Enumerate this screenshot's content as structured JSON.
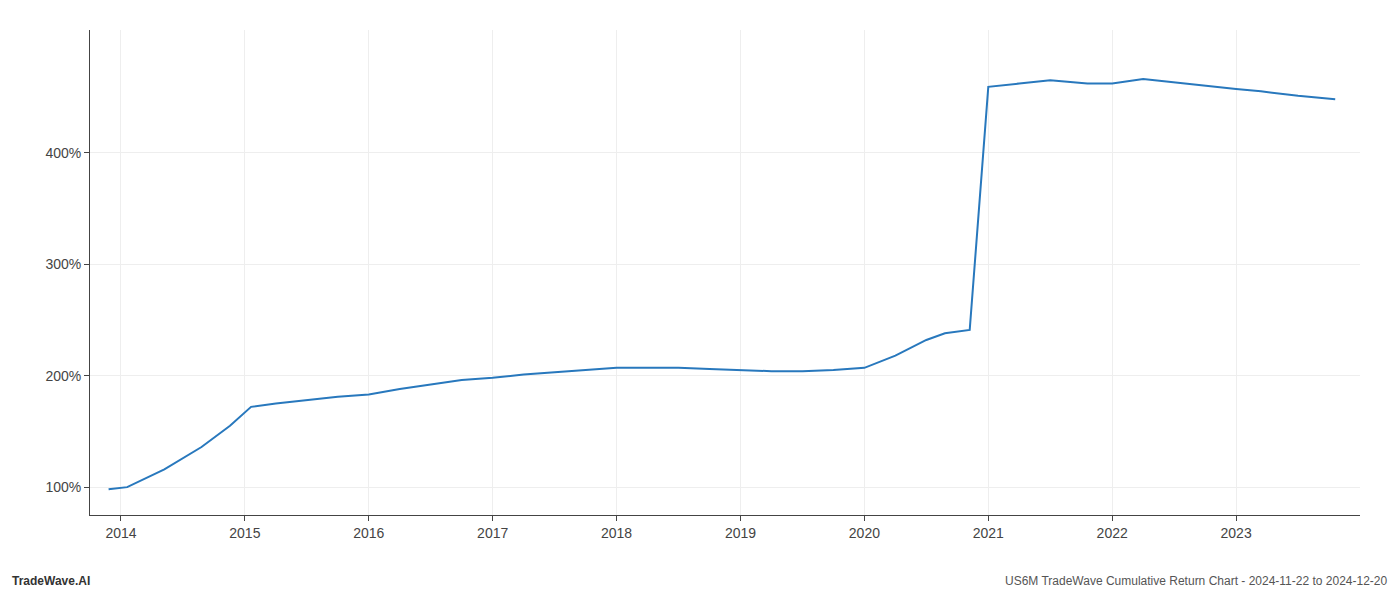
{
  "chart_data": {
    "type": "line",
    "x": [
      2013.9,
      2014.05,
      2014.35,
      2014.65,
      2014.88,
      2015.05,
      2015.25,
      2015.5,
      2015.75,
      2016.0,
      2016.25,
      2016.5,
      2016.75,
      2017.0,
      2017.25,
      2017.5,
      2017.75,
      2018.0,
      2018.25,
      2018.5,
      2018.75,
      2019.0,
      2019.25,
      2019.5,
      2019.75,
      2020.0,
      2020.25,
      2020.5,
      2020.65,
      2020.85,
      2021.0,
      2021.25,
      2021.5,
      2021.8,
      2022.0,
      2022.25,
      2022.5,
      2022.8,
      2023.0,
      2023.2,
      2023.5,
      2023.8
    ],
    "values": [
      98,
      100,
      116,
      136,
      155,
      172,
      175,
      178,
      181,
      183,
      188,
      192,
      196,
      198,
      201,
      203,
      205,
      207,
      207,
      207,
      206,
      205,
      204,
      204,
      205,
      207,
      218,
      232,
      238,
      241,
      459,
      462,
      465,
      462,
      462,
      466,
      463,
      459,
      457,
      455,
      451,
      448
    ],
    "color": "#2878bd",
    "xlim": [
      2013.75,
      2024.0
    ],
    "ylim": [
      75,
      510
    ],
    "xticks": [
      2014,
      2015,
      2016,
      2017,
      2018,
      2019,
      2020,
      2021,
      2022,
      2023
    ],
    "yticks": [
      {
        "value": 100,
        "label": "100%"
      },
      {
        "value": 200,
        "label": "200%"
      },
      {
        "value": 300,
        "label": "300%"
      },
      {
        "value": 400,
        "label": "400%"
      }
    ],
    "grid": true,
    "annotations": [
      "TradeWave.AI",
      "US6M TradeWave Cumulative Return Chart - 2024-11-22 to 2024-12-20"
    ]
  }
}
